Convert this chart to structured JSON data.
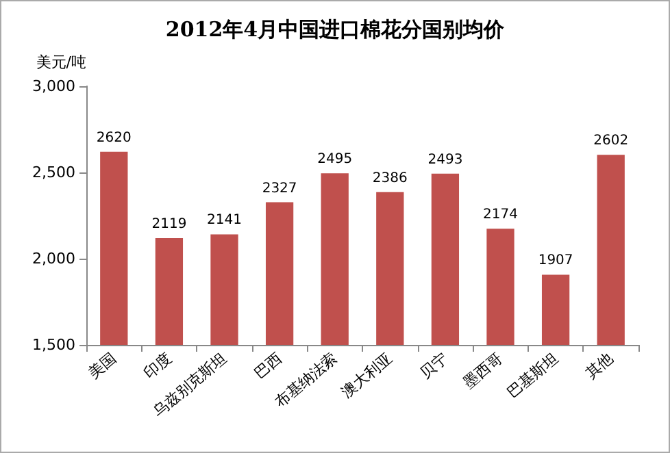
{
  "chart_data": {
    "type": "bar",
    "title": "2012年4月中国进口棉花分国别均价",
    "ylabel": "美元/吨",
    "categories": [
      "美国",
      "印度",
      "乌兹别克斯坦",
      "巴西",
      "布基纳法索",
      "澳大利亚",
      "贝宁",
      "墨西哥",
      "巴基斯坦",
      "其他"
    ],
    "values": [
      2620,
      2119,
      2141,
      2327,
      2495,
      2386,
      2493,
      2174,
      1907,
      2602
    ],
    "color": "#c0504d",
    "ylim": [
      1500,
      3000
    ],
    "yticks": [
      {
        "value": 1500,
        "label": "1,500"
      },
      {
        "value": 2000,
        "label": "2,000"
      },
      {
        "value": 2500,
        "label": "2,500"
      },
      {
        "value": 3000,
        "label": "3,000"
      }
    ],
    "grid": false,
    "data_labels": true
  }
}
